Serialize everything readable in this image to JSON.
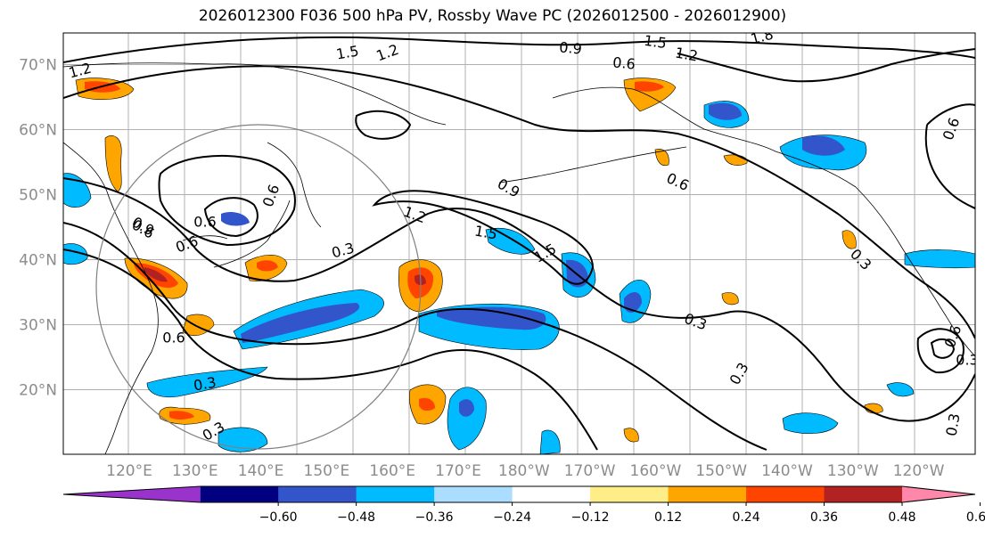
{
  "title": "2026012300 F036 500 hPa PV, Rossby Wave PC (2026012500 - 2026012900)",
  "map": {
    "lat_labels": [
      "70°N",
      "60°N",
      "50°N",
      "40°N",
      "30°N",
      "20°N"
    ],
    "lon_labels": [
      "120°E",
      "130°E",
      "140°E",
      "150°E",
      "160°E",
      "170°E",
      "180°W",
      "170°W",
      "160°W",
      "150°W",
      "140°W",
      "130°W",
      "120°W"
    ]
  },
  "contour_labels": [
    "1.2",
    "1.5",
    "1.2",
    "0.9",
    "0.6",
    "1.5",
    "1.2",
    "1.8",
    "0.3",
    "0.9",
    "0.6",
    "0.6",
    "0.6",
    "0.6",
    "0.9",
    "0.6",
    "1.2",
    "1.5",
    "1.5",
    "0.3",
    "0.3",
    "0.3",
    "0.6",
    "0.3",
    "0.3",
    "0.3",
    "0.6",
    "0.3",
    "0.6"
  ],
  "colorbar": {
    "colors": [
      "#9933cc",
      "#000080",
      "#3355cc",
      "#00bbff",
      "#aaddff",
      "#ffffff",
      "#ffee88",
      "#ffa500",
      "#ff4400",
      "#b22222",
      "#ff88aa"
    ],
    "ticks": [
      "−0.60",
      "−0.48",
      "−0.36",
      "−0.24",
      "−0.12",
      "0.12",
      "0.24",
      "0.36",
      "0.48",
      "0.60"
    ]
  }
}
